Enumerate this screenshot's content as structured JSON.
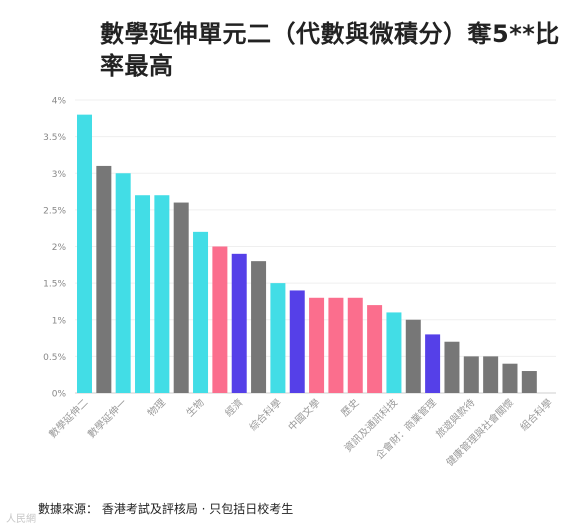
{
  "title": "數學延伸單元二（代數與微積分）奪5**比率最高",
  "source_note": "數據來源： 香港考試及評核局 · 只包括日校考生",
  "watermark": "人民網",
  "colors": {
    "cyan": "#42dde6",
    "gray": "#777777",
    "pink": "#fb6e8d",
    "purple": "#5540e8"
  },
  "chart_data": {
    "type": "bar",
    "title": "數學延伸單元二（代數與微積分）奪5**比率最高",
    "xlabel": "",
    "ylabel": "",
    "ylim": [
      0,
      4
    ],
    "yticks": [
      "0%",
      "0.5%",
      "1%",
      "1.5%",
      "2%",
      "2.5%",
      "3%",
      "3.5%",
      "4%"
    ],
    "grid": true,
    "categories": [
      "數學延伸二",
      "",
      "數學延伸一",
      "",
      "物理",
      "",
      "生物",
      "",
      "經濟",
      "",
      "綜合科學",
      "",
      "中國文學",
      "",
      "歷史",
      "",
      "資訊及通訊科技",
      "",
      "企會財：商業管理",
      "",
      "旅遊與款待",
      "",
      "健康管理與社會關懷",
      "",
      "組合科學"
    ],
    "values": [
      3.8,
      3.1,
      3.0,
      2.7,
      2.7,
      2.6,
      2.2,
      2.0,
      1.9,
      1.8,
      1.5,
      1.4,
      1.3,
      1.3,
      1.3,
      1.2,
      1.1,
      1.0,
      0.8,
      0.7,
      0.5,
      0.5,
      0.4,
      0.3,
      0.0
    ],
    "bar_colors": [
      "cyan",
      "gray",
      "cyan",
      "cyan",
      "cyan",
      "gray",
      "cyan",
      "pink",
      "purple",
      "gray",
      "cyan",
      "purple",
      "pink",
      "pink",
      "pink",
      "pink",
      "cyan",
      "gray",
      "purple",
      "gray",
      "gray",
      "gray",
      "gray",
      "gray",
      "gray"
    ]
  }
}
